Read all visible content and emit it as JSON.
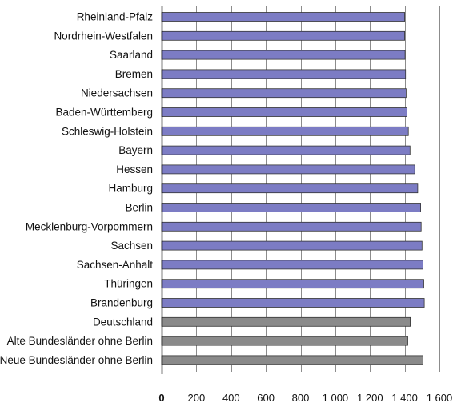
{
  "chart_data": {
    "type": "bar",
    "orientation": "horizontal",
    "categories": [
      "Rheinland-Pfalz",
      "Nordrhein-Westfalen",
      "Saarland",
      "Bremen",
      "Niedersachsen",
      "Baden-Württemberg",
      "Schleswig-Holstein",
      "Bayern",
      "Hessen",
      "Hamburg",
      "Berlin",
      "Mecklenburg-Vorpommern",
      "Sachsen",
      "Sachsen-Anhalt",
      "Thüringen",
      "Brandenburg",
      "Deutschland",
      "Alte Bundesländer ohne Berlin",
      "Neue Bundesländer ohne Berlin"
    ],
    "values": [
      1400,
      1400,
      1402,
      1405,
      1408,
      1413,
      1421,
      1431,
      1458,
      1475,
      1492,
      1495,
      1500,
      1505,
      1510,
      1513,
      1432,
      1418,
      1505
    ],
    "bar_colors": [
      "#7c7cc4",
      "#7c7cc4",
      "#7c7cc4",
      "#7c7cc4",
      "#7c7cc4",
      "#7c7cc4",
      "#7c7cc4",
      "#7c7cc4",
      "#7c7cc4",
      "#7c7cc4",
      "#7c7cc4",
      "#7c7cc4",
      "#7c7cc4",
      "#7c7cc4",
      "#7c7cc4",
      "#7c7cc4",
      "#8a8a8a",
      "#8a8a8a",
      "#8a8a8a"
    ],
    "xticks": [
      0,
      200,
      400,
      600,
      800,
      1000,
      1200,
      1400,
      1600
    ],
    "xtick_labels": [
      "0",
      "200",
      "400",
      "600",
      "800",
      "1 000",
      "1 200",
      "1 400",
      "1 600"
    ],
    "xlim": [
      0,
      1600
    ],
    "grid": "vertical",
    "title": "",
    "xlabel": "",
    "ylabel": ""
  }
}
